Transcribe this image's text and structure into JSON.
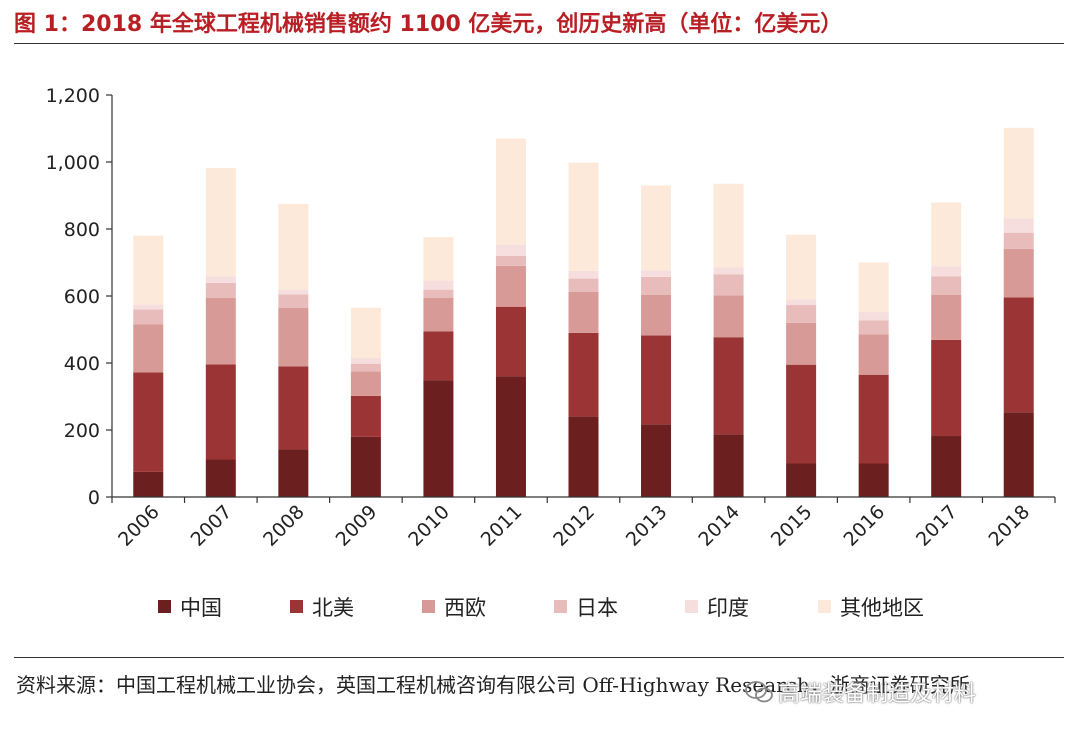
{
  "title": "图 1：2018 年全球工程机械销售额约 1100 亿美元，创历史新高（单位：亿美元）",
  "source_text": "资料来源：中国工程机械工业协会，英国工程机械咨询有限公司 Off-Highway Research，浙商证券研究所",
  "watermark_text": "高端装备制造及材料",
  "watermark_icon": "wechat-icon",
  "chart_data": {
    "type": "bar",
    "stacked": true,
    "categories": [
      "2006",
      "2007",
      "2008",
      "2009",
      "2010",
      "2011",
      "2012",
      "2013",
      "2014",
      "2015",
      "2016",
      "2017",
      "2018"
    ],
    "series": [
      {
        "name": "中国",
        "color": "#6b1f1f",
        "values": [
          75,
          112,
          142,
          180,
          348,
          360,
          240,
          217,
          187,
          100,
          100,
          182,
          253
        ]
      },
      {
        "name": "北美",
        "color": "#9b3535",
        "values": [
          297,
          284,
          248,
          122,
          146,
          208,
          250,
          265,
          290,
          295,
          265,
          287,
          343
        ]
      },
      {
        "name": "西欧",
        "color": "#d89a96",
        "values": [
          143,
          198,
          175,
          73,
          100,
          122,
          122,
          122,
          125,
          125,
          120,
          135,
          145
        ]
      },
      {
        "name": "日本",
        "color": "#e9bcbc",
        "values": [
          45,
          45,
          40,
          23,
          25,
          30,
          40,
          53,
          63,
          53,
          42,
          55,
          48
        ]
      },
      {
        "name": "印度",
        "color": "#f6dede",
        "values": [
          15,
          20,
          15,
          17,
          27,
          33,
          23,
          20,
          20,
          17,
          25,
          30,
          43
        ]
      },
      {
        "name": "其他地区",
        "color": "#fde9d9",
        "values": [
          205,
          323,
          255,
          150,
          130,
          317,
          323,
          253,
          250,
          193,
          148,
          190,
          270
        ]
      }
    ],
    "y_ticks": [
      "0",
      "200",
      "400",
      "600",
      "800",
      "1,000",
      "1,200"
    ],
    "ylim": [
      0,
      1200
    ],
    "legend_position": "bottom",
    "grid": false
  }
}
